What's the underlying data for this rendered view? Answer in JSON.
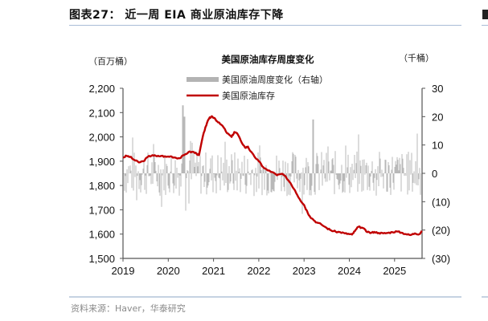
{
  "figure": {
    "title": "图表27： 近一周 EIA 商业原油库存下降",
    "source": "资料来源：Haver，华泰研究"
  },
  "chart_data": {
    "type": "line+bar",
    "title": "美国原油库存周度变化",
    "left_axis_unit": "（百万桶）",
    "right_axis_unit": "（千桶）",
    "legend": [
      {
        "label": "美国原油周度变化（右轴）",
        "type": "bar",
        "color": "#b3b3b3"
      },
      {
        "label": "美国原油库存",
        "type": "line",
        "color": "#c00000"
      }
    ],
    "x_ticks": [
      "2019",
      "2020",
      "2021",
      "2022",
      "2023",
      "2024",
      "2025"
    ],
    "left_ticks": [
      "2,200",
      "2,100",
      "2,000",
      "1,900",
      "1,800",
      "1,700",
      "1,600",
      "1,500"
    ],
    "right_ticks": [
      "30",
      "20",
      "10",
      "0",
      "(10)",
      "(20)",
      "(30)"
    ],
    "left_ylim": [
      1500,
      2200
    ],
    "right_ylim": [
      -30,
      30
    ],
    "xlim": [
      2019.0,
      2025.6
    ],
    "series": [
      {
        "name": "美国原油库存",
        "axis": "left",
        "x": [
          2019.0,
          2019.08,
          2019.15,
          2019.25,
          2019.35,
          2019.45,
          2019.55,
          2019.65,
          2019.75,
          2019.85,
          2019.95,
          2020.05,
          2020.15,
          2020.25,
          2020.35,
          2020.45,
          2020.55,
          2020.62,
          2020.68,
          2020.75,
          2020.82,
          2020.9,
          2020.96,
          2021.02,
          2021.1,
          2021.2,
          2021.3,
          2021.4,
          2021.46,
          2021.52,
          2021.6,
          2021.7,
          2021.76,
          2021.82,
          2021.9,
          2022.0,
          2022.1,
          2022.2,
          2022.3,
          2022.4,
          2022.5,
          2022.6,
          2022.7,
          2022.8,
          2022.9,
          2023.0,
          2023.05,
          2023.12,
          2023.2,
          2023.28,
          2023.38,
          2023.5,
          2023.6,
          2023.7,
          2023.8,
          2023.9,
          2024.0,
          2024.06,
          2024.12,
          2024.2,
          2024.3,
          2024.4,
          2024.48,
          2024.55,
          2024.65,
          2024.75,
          2024.85,
          2024.95,
          2025.05,
          2025.15,
          2025.25,
          2025.35,
          2025.45,
          2025.55,
          2025.6
        ],
        "values": [
          1915,
          1922,
          1918,
          1905,
          1895,
          1900,
          1918,
          1925,
          1920,
          1922,
          1918,
          1920,
          1915,
          1912,
          1925,
          1938,
          1938,
          1932,
          1925,
          1990,
          2040,
          2075,
          2085,
          2078,
          2060,
          2045,
          2015,
          2000,
          2020,
          2015,
          1985,
          1955,
          1960,
          1940,
          1920,
          1900,
          1875,
          1862,
          1855,
          1842,
          1848,
          1835,
          1810,
          1780,
          1745,
          1720,
          1700,
          1675,
          1660,
          1648,
          1640,
          1625,
          1615,
          1610,
          1608,
          1603,
          1600,
          1598,
          1612,
          1630,
          1625,
          1608,
          1605,
          1609,
          1605,
          1603,
          1605,
          1608,
          1611,
          1606,
          1600,
          1596,
          1603,
          1600,
          1614
        ],
        "note": "values approximate, read from chart"
      },
      {
        "name": "美国原油周度变化（右轴）",
        "axis": "right",
        "unit": "千桶 (approx. scale as shown on right axis)",
        "note": "weekly changes, roughly -15 to +25; approximated"
      }
    ]
  }
}
